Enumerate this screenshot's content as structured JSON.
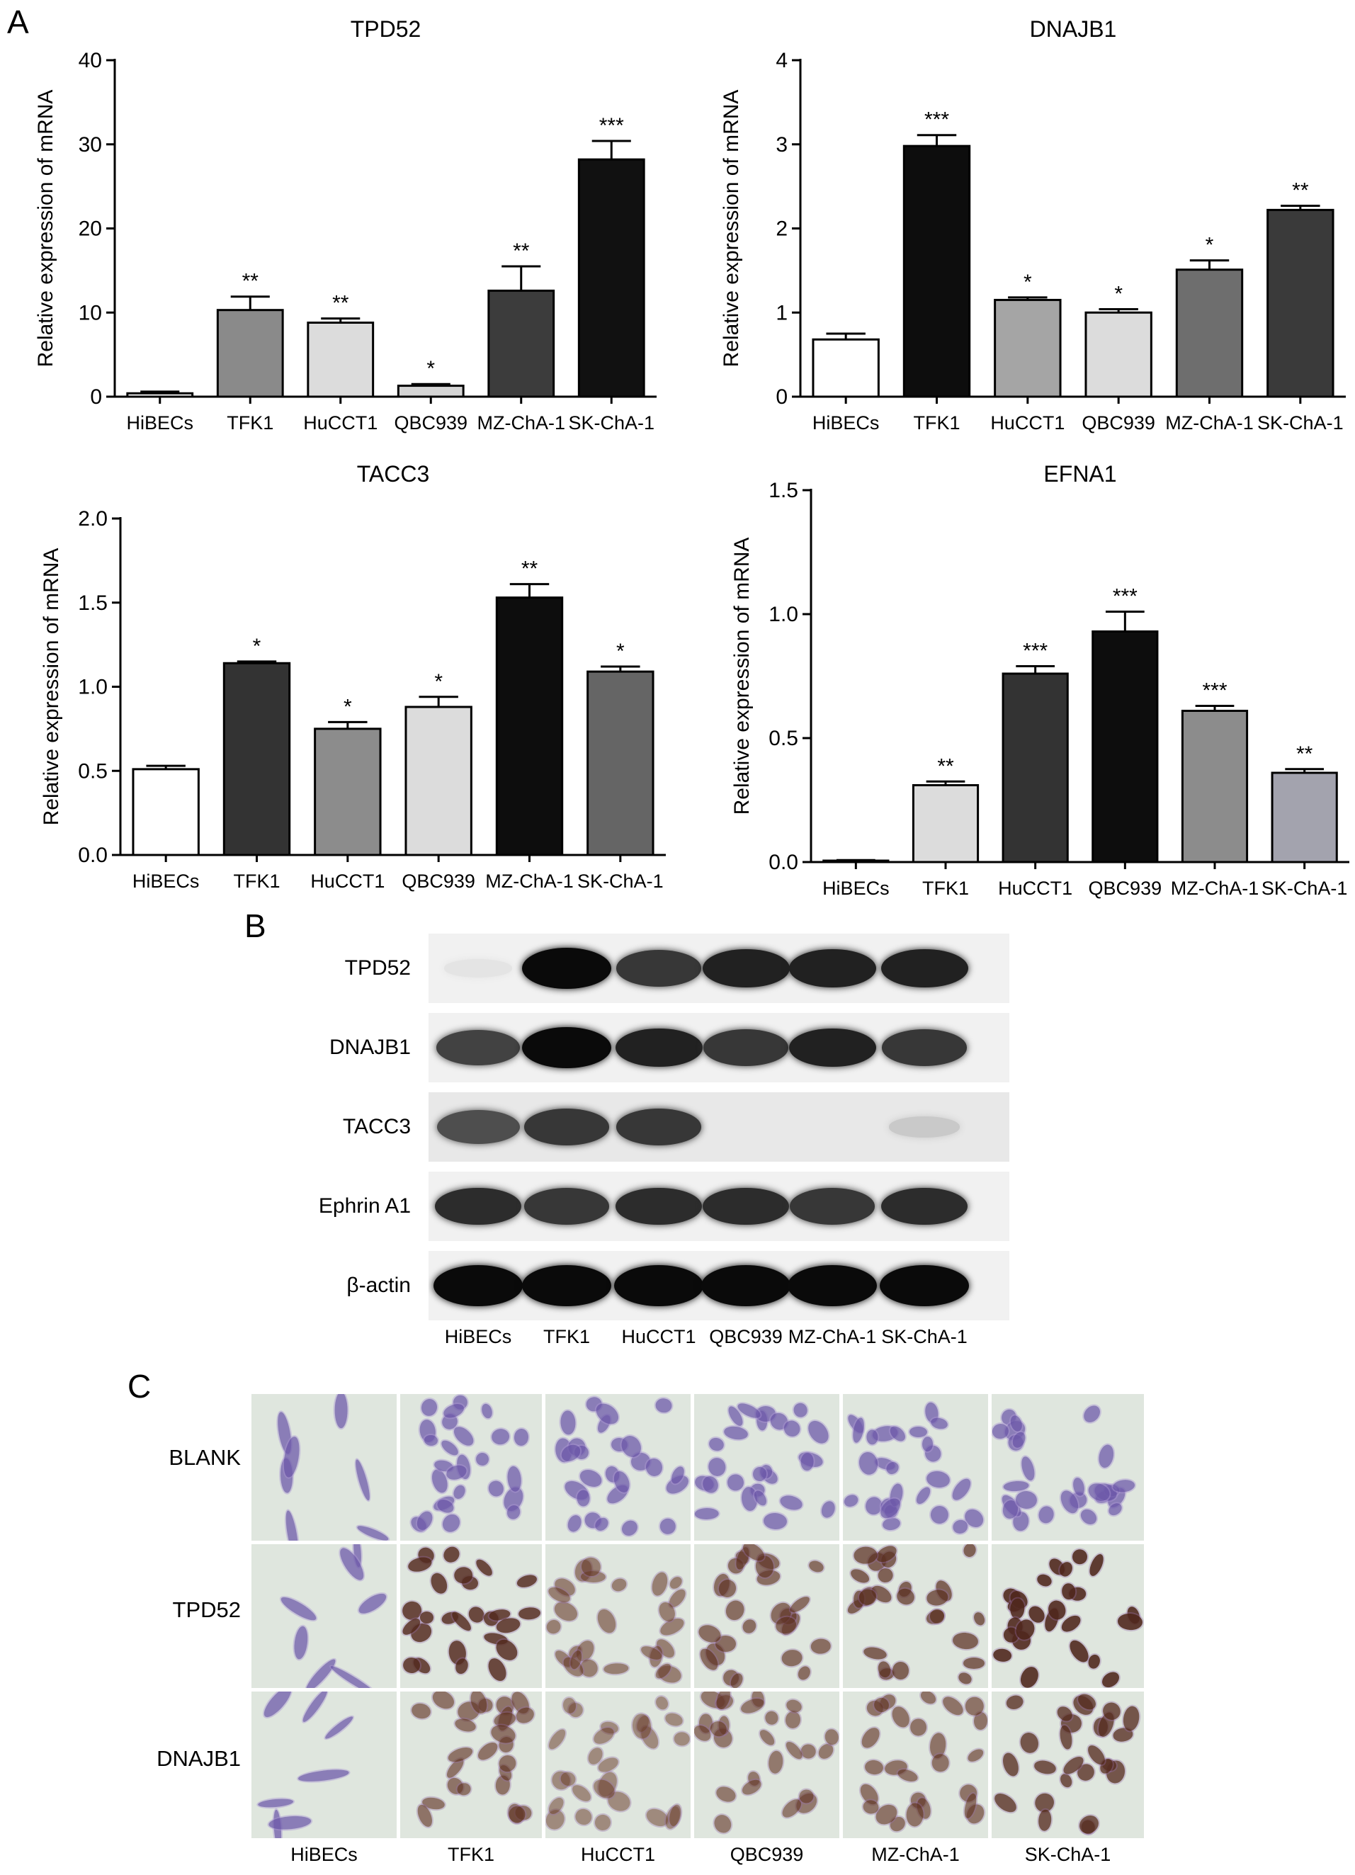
{
  "panels": {
    "A": "A",
    "B": "B",
    "C": "C"
  },
  "chart_data": [
    {
      "type": "bar",
      "title": "TPD52",
      "ylabel": "Relative expression of mRNA",
      "xlabel": "",
      "categories": [
        "HiBECs",
        "TFK1",
        "HuCCT1",
        "QBC939",
        "MZ-ChA-1",
        "SK-ChA-1"
      ],
      "values": [
        0.4,
        10.3,
        8.8,
        1.3,
        12.6,
        28.2
      ],
      "errors": [
        0.2,
        1.6,
        0.5,
        0.2,
        2.9,
        2.2
      ],
      "significance": [
        "",
        "**",
        "**",
        "*",
        "**",
        "***"
      ],
      "colors": [
        "#ffffff",
        "#8a8a8a",
        "#dcdcdc",
        "#d4d4d4",
        "#3c3c3c",
        "#111111"
      ],
      "ylim": [
        0,
        40
      ],
      "yticks": [
        "0",
        "10",
        "20",
        "30",
        "40"
      ],
      "yticks_values": [
        0,
        10,
        20,
        30,
        40
      ],
      "grid": false
    },
    {
      "type": "bar",
      "title": "DNAJB1",
      "ylabel": "Relative expression of mRNA",
      "xlabel": "",
      "categories": [
        "HiBECs",
        "TFK1",
        "HuCCT1",
        "QBC939",
        "MZ-ChA-1",
        "SK-ChA-1"
      ],
      "values": [
        0.68,
        2.98,
        1.15,
        1.0,
        1.51,
        2.22
      ],
      "errors": [
        0.07,
        0.13,
        0.03,
        0.04,
        0.11,
        0.05
      ],
      "significance": [
        "",
        "***",
        "*",
        "*",
        "*",
        "**"
      ],
      "colors": [
        "#ffffff",
        "#0d0d0d",
        "#a5a5a5",
        "#dcdcdc",
        "#6e6e6e",
        "#3a3a3a"
      ],
      "ylim": [
        0,
        4
      ],
      "yticks": [
        "0",
        "1",
        "2",
        "3",
        "4"
      ],
      "yticks_values": [
        0,
        1,
        2,
        3,
        4
      ],
      "grid": false
    },
    {
      "type": "bar",
      "title": "TACC3",
      "ylabel": "Relative expression of mRNA",
      "xlabel": "",
      "categories": [
        "HiBECs",
        "TFK1",
        "HuCCT1",
        "QBC939",
        "MZ-ChA-1",
        "SK-ChA-1"
      ],
      "values": [
        0.51,
        1.14,
        0.75,
        0.88,
        1.53,
        1.09
      ],
      "errors": [
        0.02,
        0.01,
        0.04,
        0.06,
        0.08,
        0.03
      ],
      "significance": [
        "",
        "*",
        "*",
        "*",
        "**",
        "*"
      ],
      "colors": [
        "#ffffff",
        "#333333",
        "#8c8c8c",
        "#dcdcdc",
        "#0d0d0d",
        "#656565"
      ],
      "ylim": [
        0,
        2.0
      ],
      "yticks": [
        "0.0",
        "0.5",
        "1.0",
        "1.5",
        "2.0"
      ],
      "yticks_values": [
        0,
        0.5,
        1.0,
        1.5,
        2.0
      ],
      "grid": false
    },
    {
      "type": "bar",
      "title": "EFNA1",
      "ylabel": "Relative expression of mRNA",
      "xlabel": "",
      "categories": [
        "HiBECs",
        "TFK1",
        "HuCCT1",
        "QBC939",
        "MZ-ChA-1",
        "SK-ChA-1"
      ],
      "values": [
        0.005,
        0.31,
        0.76,
        0.93,
        0.61,
        0.36
      ],
      "errors": [
        0.003,
        0.015,
        0.03,
        0.08,
        0.02,
        0.015
      ],
      "significance": [
        "",
        "**",
        "***",
        "***",
        "***",
        "**"
      ],
      "colors": [
        "#ffffff",
        "#dcdcdc",
        "#333333",
        "#0d0d0d",
        "#8c8c8c",
        "#a3a3ae"
      ],
      "ylim": [
        0,
        1.5
      ],
      "yticks": [
        "0.0",
        "0.5",
        "1.0",
        "1.5"
      ],
      "yticks_values": [
        0,
        0.5,
        1.0,
        1.5
      ],
      "grid": false
    }
  ],
  "blot": {
    "rows": [
      "TPD52",
      "DNAJB1",
      "TACC3",
      "Ephrin A1",
      "β-actin"
    ],
    "lanes": [
      "HiBECs",
      "TFK1",
      "HuCCT1",
      "QBC939",
      "MZ-ChA-1",
      "SK-ChA-1"
    ],
    "intensity": [
      [
        0.03,
        1.0,
        0.8,
        0.9,
        0.9,
        0.9
      ],
      [
        0.75,
        1.0,
        0.9,
        0.8,
        0.9,
        0.8
      ],
      [
        0.7,
        0.8,
        0.8,
        0.0,
        0.0,
        0.15
      ],
      [
        0.85,
        0.8,
        0.85,
        0.85,
        0.8,
        0.85
      ],
      [
        1.0,
        1.0,
        1.0,
        1.0,
        1.0,
        1.0
      ]
    ]
  },
  "micro": {
    "rows": [
      "BLANK",
      "TPD52",
      "DNAJB1"
    ],
    "columns": [
      "HiBECs",
      "TFK1",
      "HuCCT1",
      "QBC939",
      "MZ-ChA-1",
      "SK-ChA-1"
    ]
  }
}
